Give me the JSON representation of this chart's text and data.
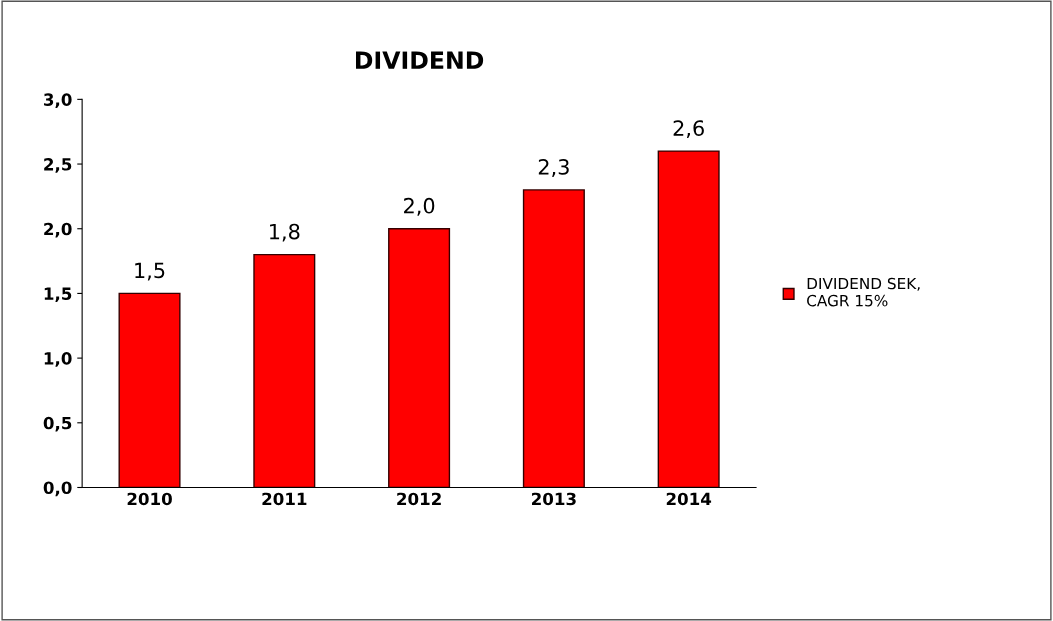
{
  "chart_data": {
    "type": "bar",
    "title": "DIVIDEND",
    "categories": [
      "2010",
      "2011",
      "2012",
      "2013",
      "2014"
    ],
    "series": [
      {
        "name": "DIVIDEND SEK,\nCAGR 15%",
        "color": "#ff0000",
        "values": [
          1.5,
          1.8,
          2.0,
          2.3,
          2.6
        ],
        "value_labels": [
          "1,5",
          "1,8",
          "2,0",
          "2,3",
          "2,6"
        ]
      }
    ],
    "ylim": [
      0,
      3
    ],
    "yticks": [
      {
        "value": 0,
        "label": "0,0"
      },
      {
        "value": 0.5,
        "label": "0,5"
      },
      {
        "value": 1,
        "label": "1,0"
      },
      {
        "value": 1.5,
        "label": "1,5"
      },
      {
        "value": 2,
        "label": "2,0"
      },
      {
        "value": 2.5,
        "label": "2,5"
      },
      {
        "value": 3,
        "label": "3,0"
      }
    ],
    "grid": false,
    "legend": "right"
  }
}
